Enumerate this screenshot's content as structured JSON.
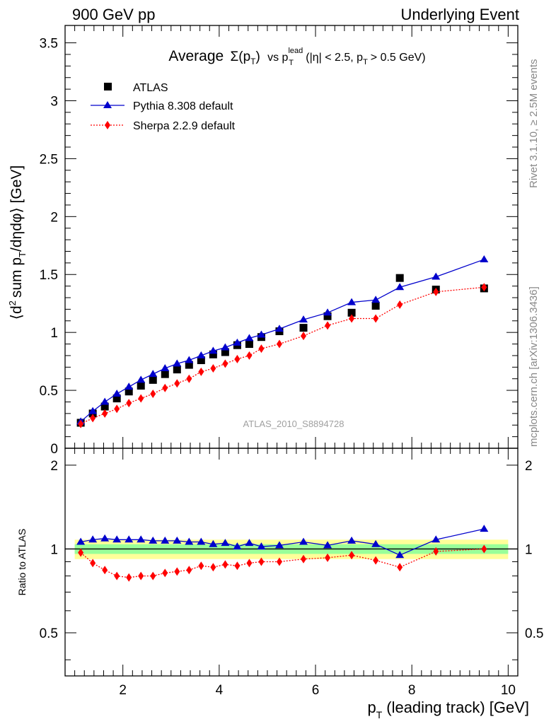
{
  "header": {
    "left": "900 GeV pp",
    "right": "Underlying Event"
  },
  "side_labels": {
    "rivet": "Rivet 3.1.10, ≥ 2.5M events",
    "mcplots": "mcplots.cern.ch [arXiv:1306.3436]"
  },
  "chart_data": {
    "type": "scatter",
    "title": {
      "main": "Average",
      "sigma": "Σ(p",
      "t": "T",
      "close": ")",
      "vs": "vs p",
      "lead": "lead",
      "tsub": "T",
      "cuts": "(|η| < 2.5, p",
      "cuts_t": "T",
      "cuts_end": "> 0.5 GeV)"
    },
    "ylabel": {
      "a": "⟨d",
      "sup": "2",
      "b": "sum p",
      "sub": "T",
      "c": "/dηdφ⟩ [GeV]"
    },
    "xlabel": {
      "a": "p",
      "sub": "T",
      "b": "(leading track) [GeV]"
    },
    "ratio_ylabel": "Ratio to ATLAS",
    "analysis_tag": "ATLAS_2010_S8894728",
    "xlim": [
      0.8,
      10.2
    ],
    "ylim": [
      0,
      3.65
    ],
    "ratio_ylim": [
      0.35,
      2.3
    ],
    "x_ticks": [
      2,
      4,
      6,
      8,
      10
    ],
    "y_ticks": [
      "0",
      "0.5",
      "1",
      "1.5",
      "2",
      "2.5",
      "3",
      "3.5"
    ],
    "ratio_y_ticks": [
      "0.5",
      "1",
      "2"
    ],
    "legend": {
      "position": "top-left"
    },
    "x": [
      1.125,
      1.375,
      1.625,
      1.875,
      2.125,
      2.375,
      2.625,
      2.875,
      3.125,
      3.375,
      3.625,
      3.875,
      4.125,
      4.375,
      4.625,
      4.875,
      5.25,
      5.75,
      6.25,
      6.75,
      7.25,
      7.75,
      8.5,
      9.5
    ],
    "series": [
      {
        "name": "ATLAS",
        "marker": "square",
        "color": "#000000",
        "values": [
          0.22,
          0.3,
          0.36,
          0.43,
          0.49,
          0.54,
          0.59,
          0.64,
          0.68,
          0.72,
          0.76,
          0.81,
          0.83,
          0.89,
          0.9,
          0.96,
          1.01,
          1.04,
          1.14,
          1.17,
          1.23,
          1.47,
          1.37,
          1.38
        ]
      },
      {
        "name": "Pythia 8.308 default",
        "marker": "triangle",
        "color": "#0000cc",
        "values": [
          0.23,
          0.32,
          0.4,
          0.47,
          0.53,
          0.59,
          0.64,
          0.69,
          0.73,
          0.76,
          0.8,
          0.84,
          0.87,
          0.91,
          0.95,
          0.98,
          1.03,
          1.11,
          1.17,
          1.26,
          1.28,
          1.39,
          1.48,
          1.63
        ],
        "ratio": [
          1.06,
          1.08,
          1.09,
          1.08,
          1.08,
          1.08,
          1.07,
          1.07,
          1.07,
          1.06,
          1.06,
          1.04,
          1.05,
          1.02,
          1.05,
          1.02,
          1.03,
          1.06,
          1.03,
          1.07,
          1.04,
          0.95,
          1.08,
          1.18
        ]
      },
      {
        "name": "Sherpa 2.2.9 default",
        "marker": "diamond",
        "color": "#ff0000",
        "values": [
          0.21,
          0.26,
          0.3,
          0.34,
          0.39,
          0.43,
          0.47,
          0.52,
          0.56,
          0.6,
          0.66,
          0.69,
          0.73,
          0.77,
          0.8,
          0.86,
          0.9,
          0.97,
          1.06,
          1.12,
          1.12,
          1.24,
          1.35,
          1.39
        ],
        "ratio": [
          0.97,
          0.89,
          0.84,
          0.8,
          0.79,
          0.8,
          0.8,
          0.82,
          0.83,
          0.84,
          0.87,
          0.86,
          0.88,
          0.87,
          0.89,
          0.9,
          0.9,
          0.92,
          0.93,
          0.95,
          0.91,
          0.86,
          0.98,
          1.0
        ]
      }
    ],
    "ratio_bands": {
      "yellow": [
        0.92,
        1.08
      ],
      "green": [
        0.96,
        1.04
      ],
      "colors": {
        "yellow": "#ffff99",
        "green": "#99ff99"
      }
    }
  }
}
